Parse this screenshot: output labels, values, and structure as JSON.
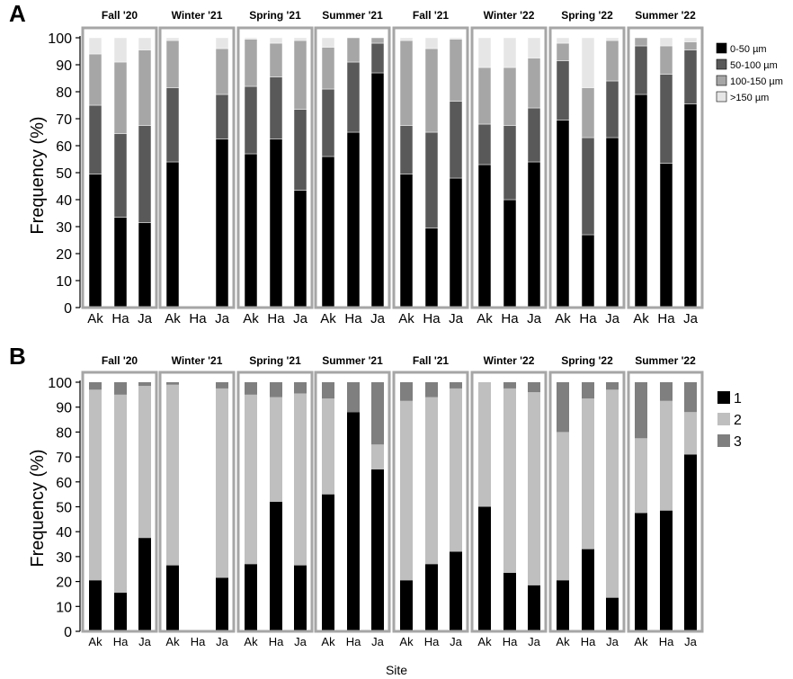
{
  "x_title": "Site",
  "panels": [
    {
      "letter": "A",
      "ylabel": "Frequency (%)",
      "legend": [
        {
          "name": "0-50 µm",
          "color": "#000000"
        },
        {
          "name": "50-100 µm",
          "color": "#595959"
        },
        {
          "name": "100-150 µm",
          "color": "#a6a6a6"
        },
        {
          "name": ">150 µm",
          "color": "#e6e6e6"
        }
      ]
    },
    {
      "letter": "B",
      "ylabel": "Frequency (%)",
      "legend": [
        {
          "name": "1",
          "color": "#000000"
        },
        {
          "name": "2",
          "color": "#bfbfbf"
        },
        {
          "name": "3",
          "color": "#7f7f7f"
        }
      ]
    }
  ],
  "chart_data": [
    {
      "type": "bar",
      "stacked": true,
      "panel": "A",
      "title": "",
      "xlabel": "Site",
      "ylabel": "Frequency (%)",
      "ylim": [
        0,
        100
      ],
      "yticks": [
        0,
        10,
        20,
        30,
        40,
        50,
        60,
        70,
        80,
        90,
        100
      ],
      "season_labels": [
        "Fall '20",
        "Winter '21",
        "Spring '21",
        "Summer '21",
        "Fall '21",
        "Winter '22",
        "Spring '22",
        "Summer '22"
      ],
      "sites": [
        "Ak",
        "Ha",
        "Ja"
      ],
      "series_names": [
        "0-50 µm",
        "50-100 µm",
        "100-150 µm",
        ">150 µm"
      ],
      "values": [
        [
          [
            49.5,
            25.5,
            19,
            6
          ],
          [
            33.5,
            31,
            26.5,
            9
          ],
          [
            31.5,
            36,
            28,
            4.5
          ]
        ],
        [
          [
            54,
            27.5,
            17.5,
            1
          ],
          null,
          [
            62.5,
            16.5,
            17,
            4
          ]
        ],
        [
          [
            57,
            25,
            17.5,
            0.5
          ],
          [
            62.5,
            23,
            12.5,
            2
          ],
          [
            43.5,
            30,
            25.5,
            1
          ]
        ],
        [
          [
            56,
            25,
            15.5,
            3.5
          ],
          [
            65,
            26,
            9,
            0
          ],
          [
            87,
            11,
            2,
            0
          ]
        ],
        [
          [
            49.5,
            18,
            31.5,
            1
          ],
          [
            29.5,
            35.5,
            31,
            4
          ],
          [
            48,
            28.5,
            23,
            0.5
          ]
        ],
        [
          [
            53,
            15,
            21,
            11
          ],
          [
            40,
            27.5,
            21.5,
            11
          ],
          [
            54,
            20,
            18.5,
            7.5
          ]
        ],
        [
          [
            69.5,
            22,
            6.5,
            2
          ],
          [
            27,
            36,
            18.5,
            18.5
          ],
          [
            63,
            21,
            15,
            1
          ]
        ],
        [
          [
            79,
            18,
            3,
            0
          ],
          [
            53.5,
            33,
            10.5,
            3
          ],
          [
            75.5,
            20,
            3,
            1.5
          ]
        ]
      ]
    },
    {
      "type": "bar",
      "stacked": true,
      "panel": "B",
      "title": "",
      "xlabel": "Site",
      "ylabel": "Frequency (%)",
      "ylim": [
        0,
        100
      ],
      "yticks": [
        0,
        10,
        20,
        30,
        40,
        50,
        60,
        70,
        80,
        90,
        100
      ],
      "season_labels": [
        "Fall '20",
        "Winter '21",
        "Spring '21",
        "Summer '21",
        "Fall '21",
        "Winter '22",
        "Spring '22",
        "Summer '22"
      ],
      "sites": [
        "Ak",
        "Ha",
        "Ja"
      ],
      "series_names": [
        "1",
        "2",
        "3"
      ],
      "values": [
        [
          [
            20.5,
            76.5,
            3
          ],
          [
            15.5,
            79.5,
            5
          ],
          [
            37.5,
            61,
            1.5
          ]
        ],
        [
          [
            26.5,
            72.5,
            1
          ],
          null,
          [
            21.5,
            76,
            2.5
          ]
        ],
        [
          [
            27,
            68,
            5
          ],
          [
            52,
            42,
            6
          ],
          [
            26.5,
            69,
            4.5
          ]
        ],
        [
          [
            55,
            38.5,
            6.5
          ],
          [
            88,
            0,
            12
          ],
          [
            65,
            10,
            25
          ]
        ],
        [
          [
            20.5,
            72,
            7.5
          ],
          [
            27,
            67,
            6
          ],
          [
            32,
            65.5,
            2.5
          ]
        ],
        [
          [
            50,
            50,
            0
          ],
          [
            23.5,
            74,
            2.5
          ],
          [
            18.5,
            77.5,
            4
          ]
        ],
        [
          [
            20.5,
            59.5,
            20
          ],
          [
            33,
            60.5,
            6.5
          ],
          [
            13.5,
            83.5,
            3
          ]
        ],
        [
          [
            47.5,
            30,
            22.5
          ],
          [
            48.5,
            44,
            7.5
          ],
          [
            71,
            17,
            12
          ]
        ]
      ]
    }
  ]
}
